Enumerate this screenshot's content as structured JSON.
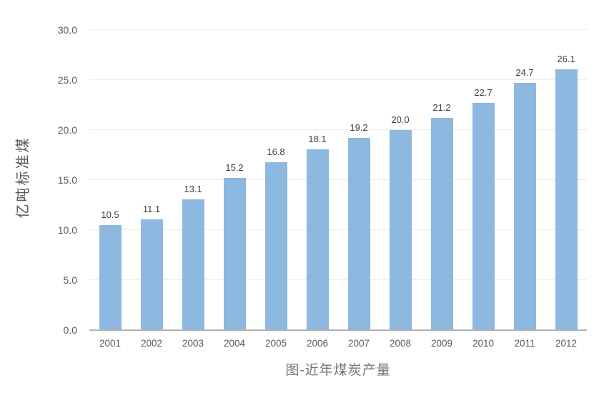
{
  "chart_data": {
    "type": "bar",
    "title": "图-近年煤炭产量",
    "ylabel": "亿吨标准煤",
    "xlabel": "",
    "categories": [
      "2001",
      "2002",
      "2003",
      "2004",
      "2005",
      "2006",
      "2007",
      "2008",
      "2009",
      "2010",
      "2011",
      "2012"
    ],
    "values": [
      10.5,
      11.1,
      13.1,
      15.2,
      16.8,
      18.1,
      19.2,
      20.0,
      21.2,
      22.7,
      24.7,
      26.1
    ],
    "value_labels": [
      "10.5",
      "11.1",
      "13.1",
      "15.2",
      "16.8",
      "18.1",
      "19.2",
      "20.0",
      "21.2",
      "22.7",
      "24.7",
      "26.1"
    ],
    "ylim": [
      0,
      30
    ],
    "ytick_labels": [
      "0.0",
      "5.0",
      "10.0",
      "15.0",
      "20.0",
      "25.0",
      "30.0"
    ],
    "ytick_values": [
      0,
      5,
      10,
      15,
      20,
      25,
      30
    ],
    "grid": "horizontal",
    "legend_position": "none",
    "colors": {
      "bar_fill": "#8db8df",
      "gridline": "#ececec",
      "axis_line": "#b3b3b3",
      "tick_text": "#595959",
      "data_label_text": "#3f3f3f",
      "title_text": "#757575"
    }
  }
}
